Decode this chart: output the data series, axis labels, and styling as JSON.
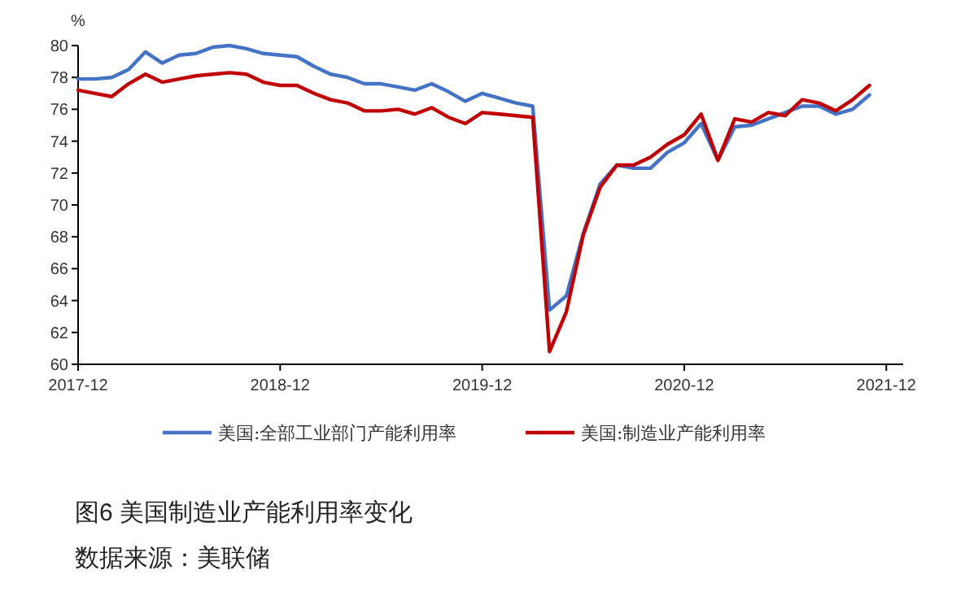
{
  "chart_data": {
    "type": "line",
    "ylabel": "%",
    "annotations": [
      "图6 美国制造业产能利用率变化",
      "数据来源：美联储"
    ],
    "x": [
      "2017-12",
      "2018-01",
      "2018-02",
      "2018-03",
      "2018-04",
      "2018-05",
      "2018-06",
      "2018-07",
      "2018-08",
      "2018-09",
      "2018-10",
      "2018-11",
      "2018-12",
      "2019-01",
      "2019-02",
      "2019-03",
      "2019-04",
      "2019-05",
      "2019-06",
      "2019-07",
      "2019-08",
      "2019-09",
      "2019-10",
      "2019-11",
      "2019-12",
      "2020-01",
      "2020-02",
      "2020-03",
      "2020-04",
      "2020-05",
      "2020-06",
      "2020-07",
      "2020-08",
      "2020-09",
      "2020-10",
      "2020-11",
      "2020-12",
      "2021-01",
      "2021-02",
      "2021-03",
      "2021-04",
      "2021-05",
      "2021-06",
      "2021-07",
      "2021-08",
      "2021-09",
      "2021-10",
      "2021-11"
    ],
    "series": [
      {
        "name": "美国:全部工业部门产能利用率",
        "color": "#4472c4",
        "values": [
          77.9,
          77.9,
          78.0,
          78.5,
          79.6,
          78.9,
          79.4,
          79.5,
          79.9,
          80.0,
          79.8,
          79.5,
          79.4,
          79.3,
          78.7,
          78.2,
          78.0,
          77.6,
          77.6,
          77.4,
          77.2,
          77.6,
          77.1,
          76.5,
          77.0,
          76.7,
          76.4,
          76.2,
          63.4,
          64.3,
          68.2,
          71.3,
          72.5,
          72.3,
          72.3,
          73.3,
          73.9,
          75.1,
          72.8,
          74.9,
          75.0,
          75.4,
          75.8,
          76.2,
          76.2,
          75.7,
          76.0,
          76.9
        ]
      },
      {
        "name": "美国:制造业产能利用率",
        "color": "#c00000",
        "values": [
          77.2,
          77.0,
          76.8,
          77.6,
          78.2,
          77.7,
          77.9,
          78.1,
          78.2,
          78.3,
          78.2,
          77.7,
          77.5,
          77.5,
          77.0,
          76.6,
          76.4,
          75.9,
          75.9,
          76.0,
          75.7,
          76.1,
          75.5,
          75.1,
          75.8,
          75.7,
          75.6,
          75.5,
          60.8,
          63.3,
          68.1,
          71.1,
          72.5,
          72.5,
          73.0,
          73.8,
          74.4,
          75.7,
          72.8,
          75.4,
          75.2,
          75.8,
          75.6,
          76.6,
          76.4,
          75.9,
          76.6,
          77.5
        ]
      }
    ],
    "xlim": [
      "2017-12",
      "2022-01"
    ],
    "xticks": [
      {
        "value": "2017-12",
        "label": "2017-12"
      },
      {
        "value": "2018-12",
        "label": "2018-12"
      },
      {
        "value": "2019-12",
        "label": "2019-12"
      },
      {
        "value": "2020-12",
        "label": "2020-12"
      },
      {
        "value": "2021-12",
        "label": "2021-12"
      }
    ],
    "ylim": [
      60,
      80
    ],
    "yticks": [
      60,
      62,
      64,
      66,
      68,
      70,
      72,
      74,
      76,
      78,
      80
    ],
    "legend": "bottom",
    "grid": false,
    "marker": "none",
    "line_style": "solid"
  }
}
